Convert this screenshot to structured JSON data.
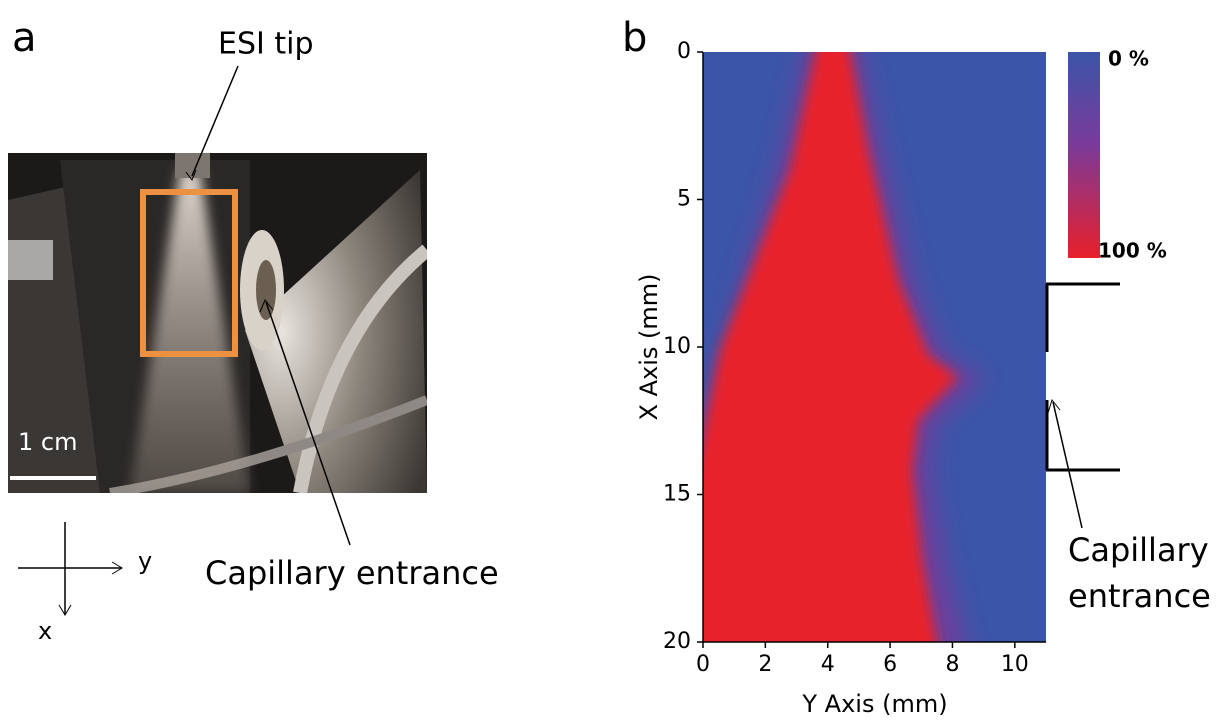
{
  "panel_a": {
    "label": "a",
    "tip_label": "ESI tip",
    "entrance_label": "Capillary entrance",
    "scale_bar": "1 cm",
    "axis_y": "y",
    "axis_x": "x"
  },
  "chart_data": {
    "type": "heatmap",
    "label": "b",
    "xlabel": "Y Axis (mm)",
    "ylabel": "X Axis (mm)",
    "xlim": [
      0,
      11
    ],
    "ylim": [
      0,
      20
    ],
    "xticks": [
      0,
      2,
      4,
      6,
      8,
      10
    ],
    "yticks": [
      0,
      5,
      10,
      15,
      20
    ],
    "colorbar_labels": [
      "0 %",
      "100 %"
    ],
    "colors": [
      "#3b55a8",
      "#e8202a"
    ],
    "annotation": [
      "Capillary",
      "entrance"
    ]
  }
}
